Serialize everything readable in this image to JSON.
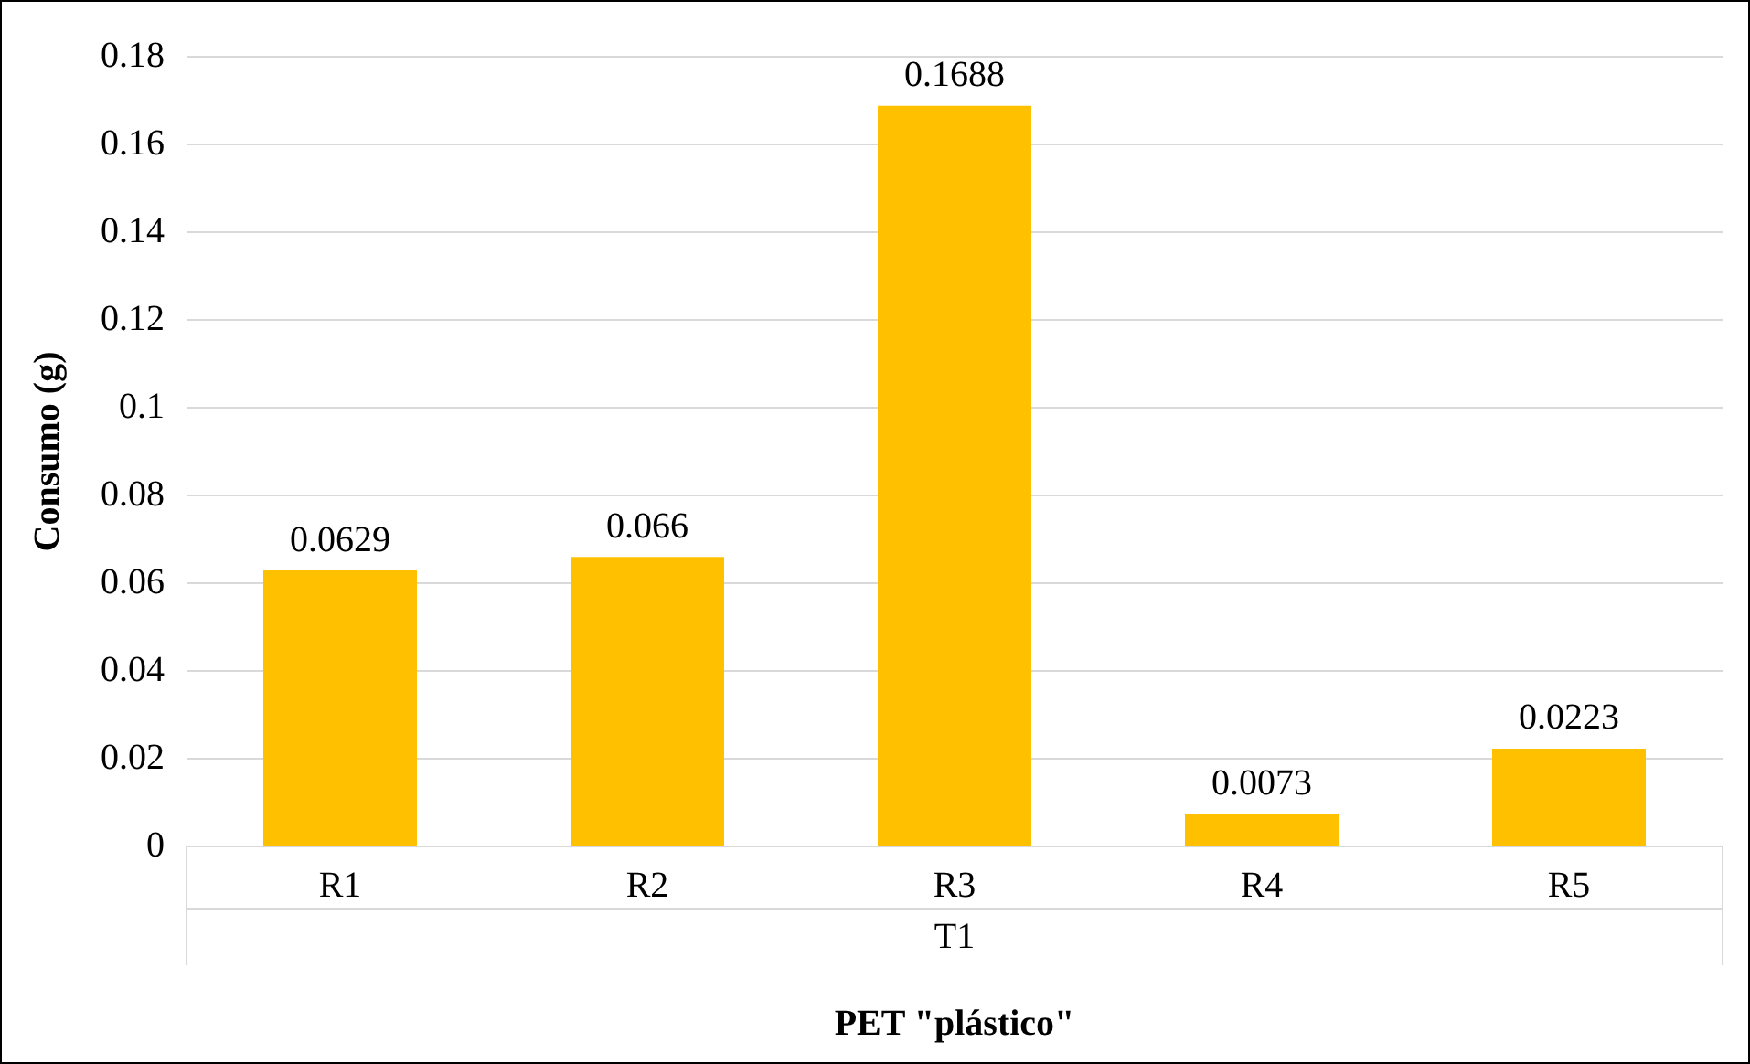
{
  "chart_data": {
    "type": "bar",
    "categories": [
      "R1",
      "R2",
      "R3",
      "R4",
      "R5"
    ],
    "values": [
      0.0629,
      0.066,
      0.1688,
      0.0073,
      0.0223
    ],
    "color": "#ffc000",
    "data_labels": true,
    "ylim": [
      0,
      0.18
    ],
    "yticks": [
      0,
      0.02,
      0.04,
      0.06,
      0.08,
      0.1,
      0.12,
      0.14,
      0.16,
      0.18
    ],
    "ylabel": "Consumo (g)",
    "xlabel": "PET \"plástico\"",
    "annotations": [
      "T1"
    ],
    "grid": "y",
    "legend": false
  }
}
